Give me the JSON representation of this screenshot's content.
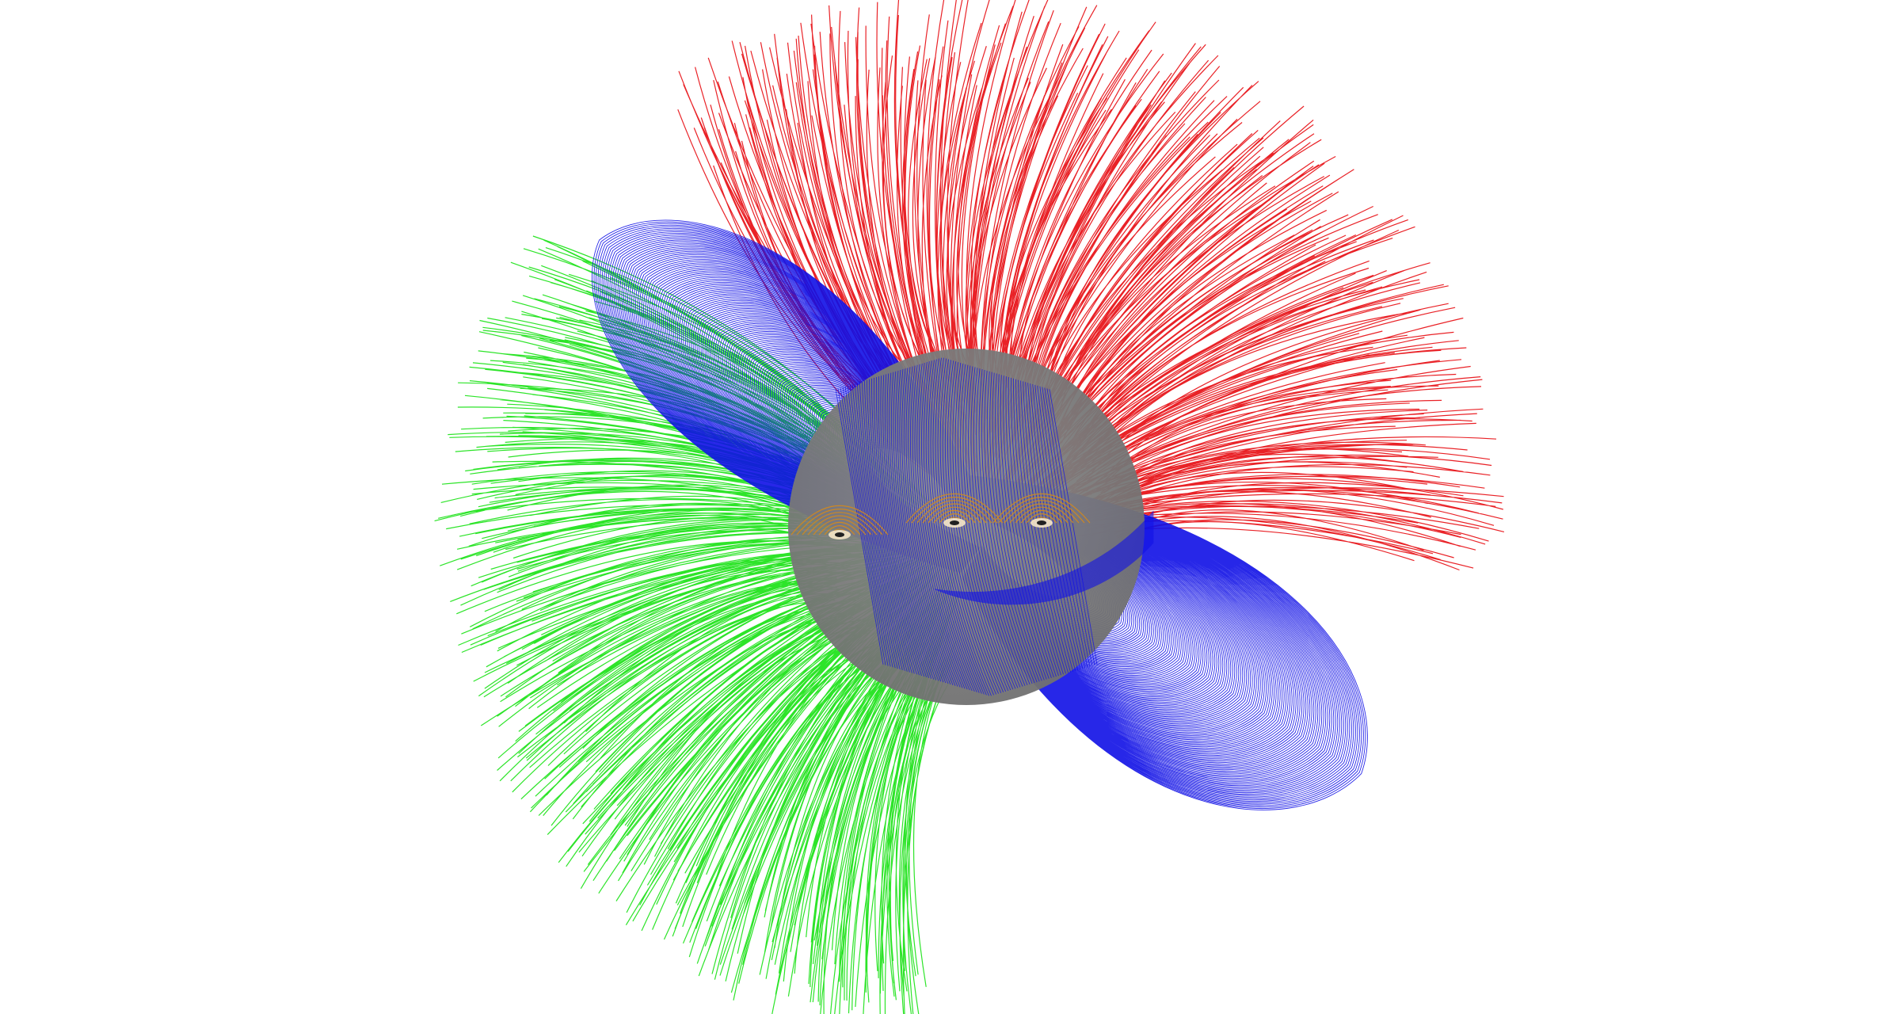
{
  "figure": {
    "background": "#ffffff",
    "field_lines": {
      "open_north_color": "#e8161b",
      "open_south_color": "#22e31e",
      "closed_helmet_color": "#1010e6",
      "active_region_color": "#d58a1a"
    },
    "sun": {
      "disk_color": "#8a8a8a",
      "shadow_color": "#6f6f6f"
    }
  }
}
